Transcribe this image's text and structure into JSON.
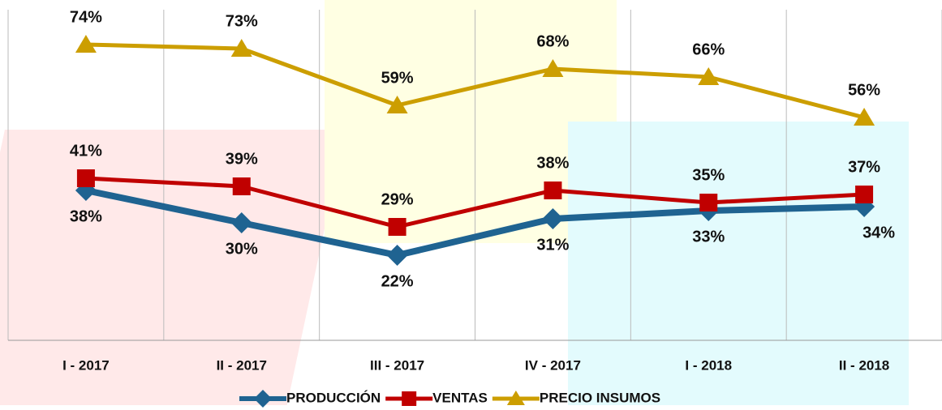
{
  "chart_data": {
    "type": "line",
    "categories": [
      "I - 2017",
      "II - 2017",
      "III - 2017",
      "IV - 2017",
      "I - 2018",
      "II - 2018"
    ],
    "series": [
      {
        "name": "PRODUCCIÓN",
        "color": "#1f6391",
        "marker": "diamond",
        "values": [
          38,
          30,
          22,
          31,
          33,
          34
        ],
        "value_labels": [
          "38%",
          "30%",
          "22%",
          "31%",
          "33%",
          "34%"
        ]
      },
      {
        "name": "VENTAS",
        "color": "#c00000",
        "marker": "square",
        "values": [
          41,
          39,
          29,
          38,
          35,
          37
        ],
        "value_labels": [
          "41%",
          "39%",
          "29%",
          "38%",
          "35%",
          "37%"
        ]
      },
      {
        "name": "PRECIO INSUMOS",
        "color": "#cc9e00",
        "marker": "triangle",
        "values": [
          74,
          73,
          59,
          68,
          66,
          56
        ],
        "value_labels": [
          "74%",
          "73%",
          "59%",
          "68%",
          "66%",
          "56%"
        ]
      }
    ],
    "ylim": [
      0,
      80
    ],
    "legend": "bottom",
    "grid": "vertical"
  }
}
